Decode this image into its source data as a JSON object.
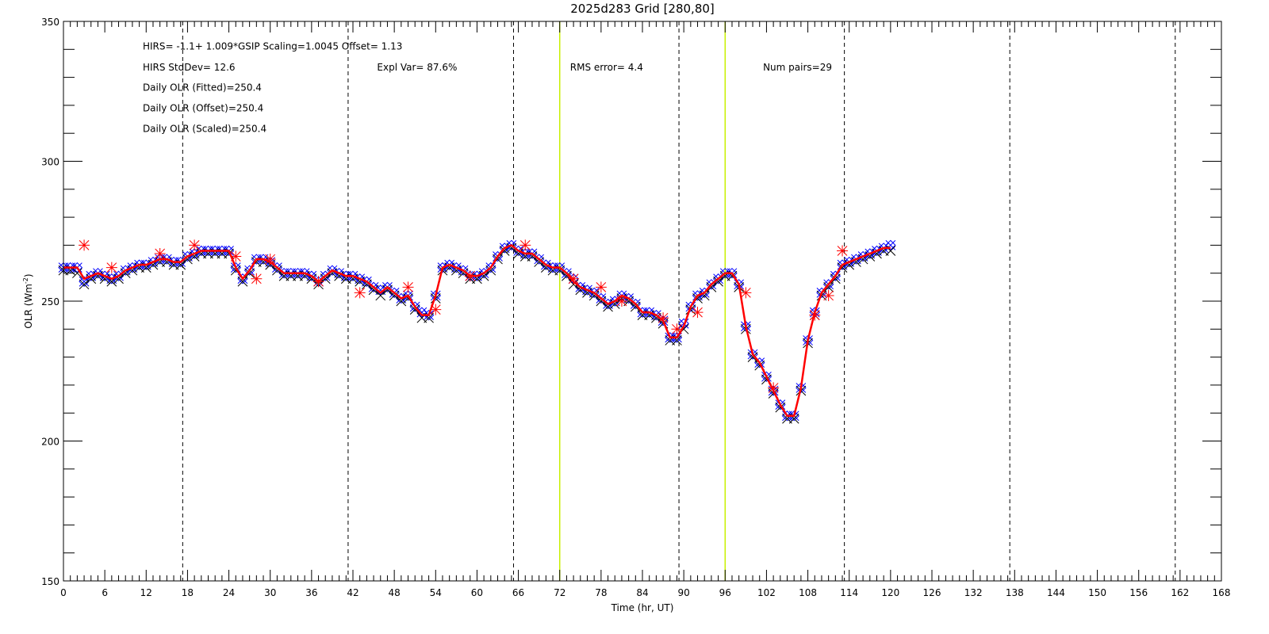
{
  "chart_data": {
    "type": "line",
    "title": "2025d283 Grid [280,80]",
    "xlabel": "Time (hr, UT)",
    "ylabel": "OLR (Wm",
    "ylabel_sup": "-2",
    "ylabel_close": ")",
    "xlim": [
      0,
      168
    ],
    "ylim": [
      150,
      350
    ],
    "xticks": [
      0,
      6,
      12,
      18,
      24,
      30,
      36,
      42,
      48,
      54,
      60,
      66,
      72,
      78,
      84,
      90,
      96,
      102,
      108,
      114,
      120,
      126,
      132,
      138,
      144,
      150,
      156,
      162,
      168
    ],
    "yticks": [
      150,
      200,
      250,
      300,
      350
    ],
    "dashed_vlines": [
      17.3,
      41.3,
      65.3,
      89.3,
      113.3,
      137.3,
      161.3
    ],
    "green_vlines": [
      72,
      96
    ],
    "annotations": [
      {
        "id": "fit",
        "text": "HIRS=   -1.1+  1.009*GSIP  Scaling=1.0045  Offset=  1.13",
        "x": 11.5,
        "y": 340
      },
      {
        "id": "stddev",
        "text": "HIRS StdDev= 12.6",
        "x": 11.5,
        "y": 332.5
      },
      {
        "id": "explvar",
        "text": "Expl Var= 87.6%",
        "x": 45.5,
        "y": 332.5
      },
      {
        "id": "rms",
        "text": "RMS error=  4.4",
        "x": 73.5,
        "y": 332.5
      },
      {
        "id": "numpairs",
        "text": "Num pairs=29",
        "x": 101.5,
        "y": 332.5
      },
      {
        "id": "fitted",
        "text": "Daily OLR (Fitted)=250.4",
        "x": 11.5,
        "y": 325.2
      },
      {
        "id": "offset",
        "text": "Daily OLR (Offset)=250.4",
        "x": 11.5,
        "y": 317.8
      },
      {
        "id": "scaled",
        "text": "Daily OLR (Scaled)=250.4",
        "x": 11.5,
        "y": 310.5
      }
    ],
    "series": [
      {
        "marker": "x",
        "color": "#0000ff",
        "x": [
          0,
          1,
          2,
          3,
          4,
          5,
          6,
          7,
          8,
          9,
          10,
          11,
          12,
          13,
          14,
          15,
          16,
          17,
          18,
          19,
          20,
          21,
          22,
          23,
          24,
          25,
          26,
          27,
          28,
          29,
          30,
          31,
          32,
          33,
          34,
          35,
          36,
          37,
          38,
          39,
          40,
          41,
          42,
          43,
          44,
          45,
          46,
          47,
          48,
          49,
          50,
          51,
          52,
          53,
          54,
          55,
          56,
          57,
          58,
          59,
          60,
          61,
          62,
          63,
          64,
          65,
          66,
          67,
          68,
          69,
          70,
          71,
          72,
          73,
          74,
          75,
          76,
          77,
          78,
          79,
          80,
          81,
          82,
          83,
          84,
          85,
          86,
          87,
          88,
          89,
          90,
          91,
          92,
          93,
          94,
          95,
          96,
          97,
          98,
          99,
          100,
          101,
          102,
          103,
          104,
          105,
          106,
          107,
          108,
          109,
          110,
          111,
          112,
          113,
          114,
          115,
          116,
          117,
          118,
          119,
          120
        ],
        "y": [
          262,
          262,
          262,
          257,
          259,
          260,
          259,
          258,
          259,
          261,
          262,
          263,
          263,
          264,
          265,
          265,
          264,
          264,
          266,
          267,
          268,
          268,
          268,
          268,
          268,
          262,
          258,
          261,
          265,
          265,
          264,
          262,
          260,
          260,
          260,
          260,
          259,
          257,
          259,
          261,
          260,
          259,
          259,
          258,
          257,
          255,
          254,
          255,
          253,
          251,
          252,
          248,
          246,
          245,
          252,
          262,
          263,
          262,
          261,
          259,
          259,
          260,
          262,
          266,
          269,
          270,
          268,
          267,
          267,
          265,
          263,
          262,
          262,
          260,
          258,
          255,
          254,
          253,
          251,
          249,
          250,
          252,
          251,
          249,
          246,
          246,
          245,
          243,
          237,
          237,
          242,
          248,
          252,
          253,
          256,
          258,
          260,
          260,
          256,
          241,
          231,
          228,
          223,
          218,
          213,
          209,
          209,
          219,
          236,
          246,
          253,
          256,
          259,
          263,
          264,
          265,
          266,
          267,
          268,
          269,
          270
        ]
      },
      {
        "marker": "x",
        "color": "#000000",
        "x": [
          0,
          1,
          2,
          3,
          4,
          5,
          6,
          7,
          8,
          9,
          10,
          11,
          12,
          13,
          14,
          15,
          16,
          17,
          18,
          19,
          20,
          21,
          22,
          23,
          24,
          25,
          26,
          27,
          28,
          29,
          30,
          31,
          32,
          33,
          34,
          35,
          36,
          37,
          38,
          39,
          40,
          41,
          42,
          43,
          44,
          45,
          46,
          47,
          48,
          49,
          50,
          51,
          52,
          53,
          54,
          55,
          56,
          57,
          58,
          59,
          60,
          61,
          62,
          63,
          64,
          65,
          66,
          67,
          68,
          69,
          70,
          71,
          72,
          73,
          74,
          75,
          76,
          77,
          78,
          79,
          80,
          81,
          82,
          83,
          84,
          85,
          86,
          87,
          88,
          89,
          90,
          91,
          92,
          93,
          94,
          95,
          96,
          97,
          98,
          99,
          100,
          101,
          102,
          103,
          104,
          105,
          106,
          107,
          108,
          109,
          110,
          111,
          112,
          113,
          114,
          115,
          116,
          117,
          118,
          119,
          120
        ],
        "y": [
          261,
          261,
          260,
          256,
          258,
          259,
          258,
          257,
          258,
          260,
          261,
          262,
          262,
          263,
          264,
          264,
          263,
          263,
          265,
          266,
          267,
          267,
          267,
          267,
          267,
          261,
          257,
          260,
          264,
          264,
          263,
          261,
          259,
          259,
          259,
          259,
          258,
          256,
          258,
          260,
          259,
          258,
          258,
          257,
          256,
          254,
          252,
          254,
          252,
          250,
          251,
          247,
          244,
          244,
          251,
          261,
          262,
          261,
          260,
          258,
          258,
          259,
          261,
          265,
          268,
          269,
          267,
          266,
          266,
          264,
          262,
          261,
          261,
          259,
          256,
          254,
          253,
          252,
          250,
          248,
          249,
          251,
          250,
          248,
          245,
          245,
          244,
          242,
          236,
          236,
          240,
          247,
          251,
          252,
          255,
          257,
          259,
          259,
          255,
          240,
          230,
          227,
          222,
          217,
          212,
          208,
          208,
          218,
          235,
          245,
          252,
          255,
          258,
          262,
          263,
          264,
          265,
          266,
          267,
          268,
          268
        ]
      },
      {
        "marker": "asterisk",
        "color": "#ff0000",
        "x": [
          3,
          7,
          14,
          19,
          25,
          28,
          30,
          37,
          43,
          50,
          54,
          59,
          67,
          74,
          78,
          81,
          87,
          89,
          92,
          99,
          103,
          109,
          111,
          113
        ],
        "y": [
          270,
          262,
          267,
          270,
          266,
          258,
          265,
          257,
          253,
          255,
          247,
          259,
          270,
          258,
          255,
          250,
          244,
          240,
          246,
          253,
          219,
          245,
          252,
          268
        ]
      },
      {
        "line": true,
        "color": "#ff0000",
        "x": [
          0,
          1,
          2,
          3,
          4,
          5,
          6,
          7,
          8,
          9,
          10,
          11,
          12,
          13,
          14,
          15,
          16,
          17,
          18,
          19,
          20,
          21,
          22,
          23,
          24,
          25,
          26,
          27,
          28,
          29,
          30,
          31,
          32,
          33,
          34,
          35,
          36,
          37,
          38,
          39,
          40,
          41,
          42,
          43,
          44,
          45,
          46,
          47,
          48,
          49,
          50,
          51,
          52,
          53,
          54,
          55,
          56,
          57,
          58,
          59,
          60,
          61,
          62,
          63,
          64,
          65,
          66,
          67,
          68,
          69,
          70,
          71,
          72,
          73,
          74,
          75,
          76,
          77,
          78,
          79,
          80,
          81,
          82,
          83,
          84,
          85,
          86,
          87,
          88,
          89,
          90,
          91,
          92,
          93,
          94,
          95,
          96,
          97,
          98,
          99,
          100,
          101,
          102,
          103,
          104,
          105,
          106,
          107,
          108,
          109,
          110,
          111,
          112,
          113,
          114,
          115,
          116,
          117,
          118,
          119,
          120
        ],
        "y": [
          262,
          262,
          262,
          258,
          259,
          260,
          259,
          258,
          259,
          261,
          262,
          263,
          263,
          264,
          265,
          265,
          264,
          264,
          266,
          267,
          268,
          268,
          268,
          268,
          268,
          262,
          258,
          261,
          265,
          265,
          264,
          262,
          260,
          260,
          260,
          260,
          259,
          257,
          259,
          261,
          260,
          259,
          259,
          258,
          257,
          255,
          253,
          255,
          253,
          251,
          252,
          248,
          245,
          245,
          252,
          262,
          263,
          262,
          261,
          259,
          259,
          260,
          262,
          266,
          269,
          270,
          268,
          267,
          267,
          265,
          263,
          262,
          262,
          260,
          257,
          255,
          254,
          253,
          251,
          249,
          250,
          252,
          251,
          249,
          246,
          246,
          245,
          243,
          237,
          237,
          241,
          248,
          252,
          253,
          256,
          258,
          260,
          260,
          256,
          241,
          231,
          228,
          223,
          218,
          213,
          209,
          209,
          219,
          236,
          246,
          253,
          256,
          259,
          263,
          264,
          265,
          266,
          267,
          268,
          269,
          269
        ]
      }
    ]
  }
}
